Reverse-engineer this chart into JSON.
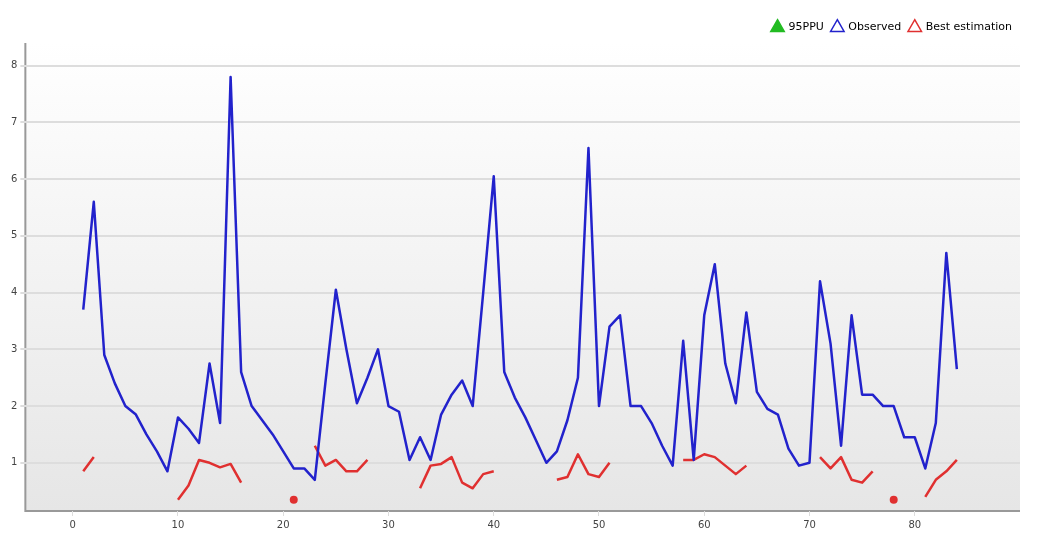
{
  "chart_data": {
    "type": "line",
    "x": [
      1,
      2,
      3,
      4,
      5,
      6,
      7,
      8,
      9,
      10,
      11,
      12,
      13,
      14,
      15,
      16,
      17,
      18,
      19,
      20,
      21,
      22,
      23,
      24,
      25,
      26,
      27,
      28,
      29,
      30,
      31,
      32,
      33,
      34,
      35,
      36,
      37,
      38,
      39,
      40,
      41,
      42,
      43,
      44,
      45,
      46,
      47,
      48,
      49,
      50,
      51,
      52,
      53,
      54,
      55,
      56,
      57,
      58,
      59,
      60,
      61,
      62,
      63,
      64,
      65,
      66,
      67,
      68,
      69,
      70,
      71,
      72,
      73,
      74,
      75,
      76,
      77,
      78,
      79,
      80,
      81,
      82,
      83,
      84
    ],
    "series": [
      {
        "name": "95PPU",
        "color": "#22bb22",
        "type": "area",
        "values": [
          null,
          null,
          null,
          null,
          null,
          null,
          null,
          null,
          null,
          null,
          null,
          null,
          null,
          null,
          null,
          null,
          null,
          null,
          null,
          null,
          null,
          null,
          null,
          null,
          null,
          null,
          null,
          null,
          null,
          null,
          null,
          null,
          null,
          null,
          null,
          null,
          null,
          null,
          null,
          null,
          null,
          null,
          null,
          null,
          null,
          null,
          null,
          null,
          null,
          null,
          null,
          null,
          null,
          null,
          null,
          null,
          null,
          null,
          null,
          null,
          null,
          null,
          null,
          null,
          null,
          null,
          null,
          null,
          null,
          null,
          null,
          null,
          null,
          null,
          null,
          null,
          null,
          null,
          null,
          null,
          null,
          null,
          null,
          null
        ]
      },
      {
        "name": "Observed",
        "color": "#2222cc",
        "values": [
          3.7,
          5.6,
          2.9,
          2.4,
          2.0,
          1.85,
          1.5,
          1.2,
          0.85,
          1.8,
          1.6,
          1.35,
          2.75,
          1.7,
          7.8,
          2.6,
          2.0,
          1.75,
          1.5,
          1.2,
          0.9,
          0.9,
          0.7,
          2.4,
          4.05,
          3.0,
          2.05,
          2.5,
          3.0,
          2.0,
          1.9,
          1.05,
          1.45,
          1.05,
          1.85,
          2.2,
          2.45,
          2.0,
          4.0,
          6.05,
          2.6,
          2.15,
          1.8,
          1.4,
          1.0,
          1.2,
          1.75,
          2.5,
          6.55,
          2.0,
          3.4,
          3.6,
          2.0,
          2.0,
          1.7,
          1.3,
          0.95,
          3.15,
          1.05,
          3.6,
          4.5,
          2.75,
          2.05,
          3.65,
          2.25,
          1.95,
          1.85,
          1.25,
          0.95,
          1.0,
          4.2,
          3.1,
          1.3,
          3.6,
          2.2,
          2.2,
          2.0,
          2.0,
          1.45,
          1.45,
          0.9,
          1.7,
          4.7,
          2.65
        ]
      },
      {
        "name": "Best estimation",
        "color": "#e03030",
        "values": [
          0.85,
          1.1,
          null,
          null,
          null,
          null,
          null,
          null,
          null,
          0.35,
          0.6,
          1.05,
          1.0,
          0.92,
          0.98,
          0.65,
          null,
          null,
          null,
          null,
          0.35,
          null,
          1.3,
          0.95,
          1.05,
          0.85,
          0.85,
          1.05,
          null,
          null,
          null,
          null,
          0.55,
          0.95,
          0.98,
          1.1,
          0.65,
          0.55,
          0.8,
          0.85,
          null,
          null,
          null,
          null,
          null,
          0.7,
          0.75,
          1.15,
          0.8,
          0.75,
          1.0,
          null,
          null,
          null,
          null,
          null,
          null,
          1.05,
          1.05,
          1.15,
          1.1,
          0.95,
          0.8,
          0.95,
          null,
          null,
          null,
          null,
          null,
          null,
          1.1,
          0.9,
          1.1,
          0.7,
          0.65,
          0.85,
          null,
          0.35,
          null,
          null,
          0.4,
          0.7,
          0.85,
          1.05
        ]
      }
    ],
    "xlim": [
      -4.5,
      90
    ],
    "xticks": [
      0,
      10,
      20,
      30,
      40,
      50,
      60,
      70,
      80
    ],
    "ylim": [
      0.15,
      8.4
    ],
    "yticks": [
      1,
      2,
      3,
      4,
      5,
      6,
      7,
      8
    ],
    "grid": "y",
    "legend": "top right",
    "marker": "none",
    "line_style": "solid"
  }
}
